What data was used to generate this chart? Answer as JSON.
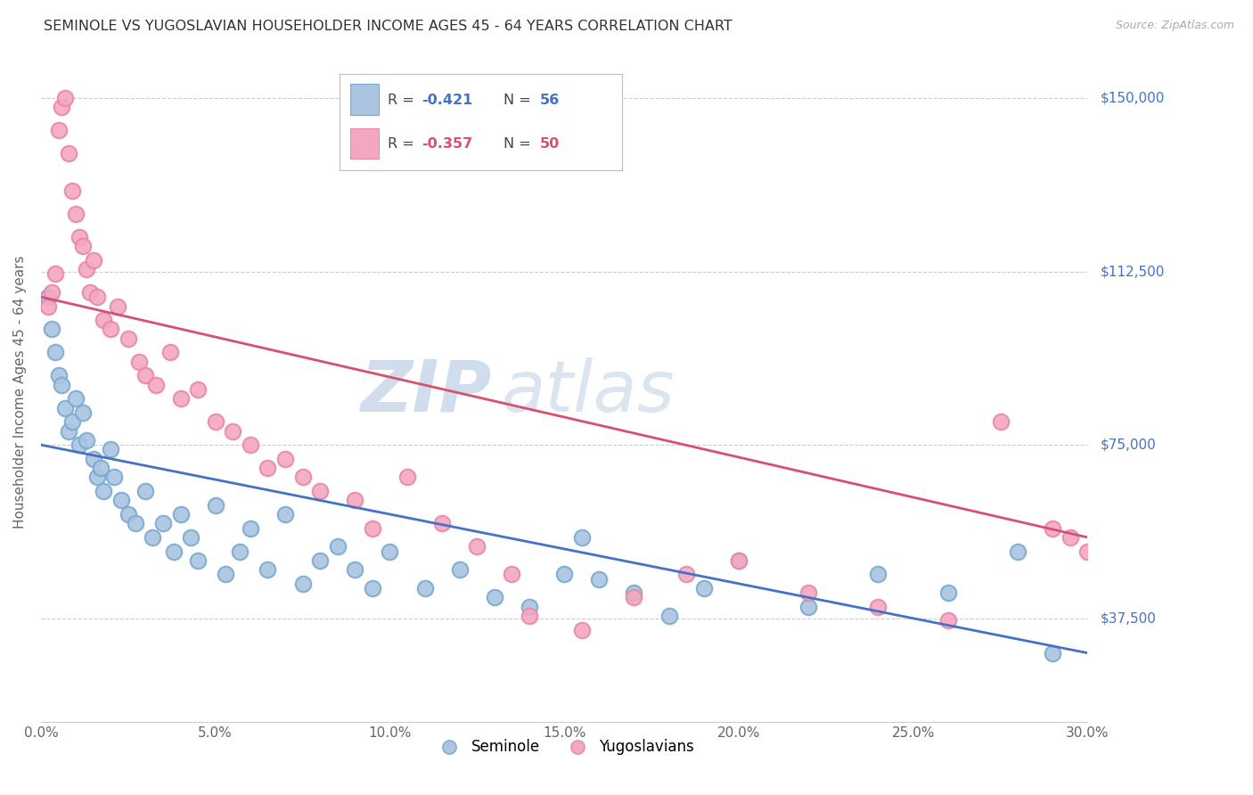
{
  "title": "SEMINOLE VS YUGOSLAVIAN HOUSEHOLDER INCOME AGES 45 - 64 YEARS CORRELATION CHART",
  "source": "Source: ZipAtlas.com",
  "ylabel": "Householder Income Ages 45 - 64 years",
  "xlabel_ticks": [
    "0.0%",
    "5.0%",
    "10.0%",
    "15.0%",
    "20.0%",
    "25.0%",
    "30.0%"
  ],
  "xlabel_vals": [
    0.0,
    5.0,
    10.0,
    15.0,
    20.0,
    25.0,
    30.0
  ],
  "ylabel_ticks": [
    "$37,500",
    "$75,000",
    "$112,500",
    "$150,000"
  ],
  "ylabel_vals": [
    37500,
    75000,
    112500,
    150000
  ],
  "xmin": 0.0,
  "xmax": 30.0,
  "ymin": 15000,
  "ymax": 158000,
  "seminole_color": "#aac4e2",
  "yugoslav_color": "#f4a8c0",
  "seminole_edge": "#7aaad0",
  "yugoslav_edge": "#e888aa",
  "trendline_seminole_color": "#4472c4",
  "trendline_yugoslav_color": "#d94f6e",
  "watermark_zip": "ZIP",
  "watermark_atlas": "atlas",
  "background_color": "#ffffff",
  "grid_color": "#cccccc",
  "seminole_x": [
    0.2,
    0.3,
    0.4,
    0.5,
    0.6,
    0.7,
    0.8,
    0.9,
    1.0,
    1.1,
    1.2,
    1.3,
    1.5,
    1.6,
    1.7,
    1.8,
    2.0,
    2.1,
    2.3,
    2.5,
    2.7,
    3.0,
    3.2,
    3.5,
    3.8,
    4.0,
    4.3,
    4.5,
    5.0,
    5.3,
    5.7,
    6.0,
    6.5,
    7.0,
    7.5,
    8.0,
    8.5,
    9.0,
    9.5,
    10.0,
    11.0,
    12.0,
    13.0,
    14.0,
    15.0,
    15.5,
    16.0,
    17.0,
    18.0,
    19.0,
    20.0,
    22.0,
    24.0,
    26.0,
    28.0,
    29.0
  ],
  "seminole_y": [
    107000,
    100000,
    95000,
    90000,
    88000,
    83000,
    78000,
    80000,
    85000,
    75000,
    82000,
    76000,
    72000,
    68000,
    70000,
    65000,
    74000,
    68000,
    63000,
    60000,
    58000,
    65000,
    55000,
    58000,
    52000,
    60000,
    55000,
    50000,
    62000,
    47000,
    52000,
    57000,
    48000,
    60000,
    45000,
    50000,
    53000,
    48000,
    44000,
    52000,
    44000,
    48000,
    42000,
    40000,
    47000,
    55000,
    46000,
    43000,
    38000,
    44000,
    50000,
    40000,
    47000,
    43000,
    52000,
    30000
  ],
  "yugoslav_x": [
    0.2,
    0.3,
    0.4,
    0.5,
    0.6,
    0.7,
    0.8,
    0.9,
    1.0,
    1.1,
    1.2,
    1.3,
    1.4,
    1.5,
    1.6,
    1.8,
    2.0,
    2.2,
    2.5,
    2.8,
    3.0,
    3.3,
    3.7,
    4.0,
    4.5,
    5.0,
    5.5,
    6.0,
    6.5,
    7.0,
    7.5,
    8.0,
    9.0,
    9.5,
    10.5,
    11.5,
    12.5,
    13.5,
    14.0,
    15.5,
    17.0,
    18.5,
    20.0,
    22.0,
    24.0,
    26.0,
    27.5,
    29.0,
    29.5,
    30.0
  ],
  "yugoslav_y": [
    105000,
    108000,
    112000,
    143000,
    148000,
    150000,
    138000,
    130000,
    125000,
    120000,
    118000,
    113000,
    108000,
    115000,
    107000,
    102000,
    100000,
    105000,
    98000,
    93000,
    90000,
    88000,
    95000,
    85000,
    87000,
    80000,
    78000,
    75000,
    70000,
    72000,
    68000,
    65000,
    63000,
    57000,
    68000,
    58000,
    53000,
    47000,
    38000,
    35000,
    42000,
    47000,
    50000,
    43000,
    40000,
    37000,
    80000,
    57000,
    55000,
    52000
  ]
}
